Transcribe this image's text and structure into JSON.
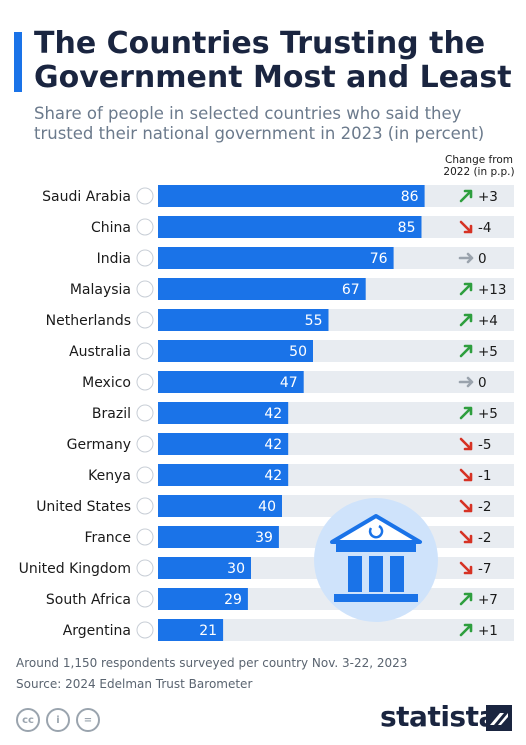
{
  "header": {
    "title": "The Countries Trusting the Government Most and Least",
    "subtitle": "Share of people in selected countries who said they trusted their national government in 2023 (in percent)",
    "change_label_line1": "Change from",
    "change_label_line2": "2022 (in p.p.)"
  },
  "colors": {
    "bar": "#1a73e8",
    "track": "#e8ecf1",
    "up": "#2e9e3e",
    "down": "#d63224",
    "neutral": "#9aa3ad",
    "accent": "#1a73e8"
  },
  "chart_data": {
    "type": "bar",
    "orientation": "horizontal",
    "categories": [
      "Saudi Arabia",
      "China",
      "India",
      "Malaysia",
      "Netherlands",
      "Australia",
      "Mexico",
      "Brazil",
      "Germany",
      "Kenya",
      "United States",
      "France",
      "United Kingdom",
      "South Africa",
      "Argentina"
    ],
    "values": [
      86,
      85,
      76,
      67,
      55,
      50,
      47,
      42,
      42,
      42,
      40,
      39,
      30,
      29,
      21
    ],
    "value_labels": [
      "86",
      "85",
      "76",
      "67",
      "55",
      "50",
      "47",
      "42",
      "42",
      "42",
      "40",
      "39",
      "30",
      "29",
      "21"
    ],
    "change": [
      3,
      -4,
      0,
      13,
      4,
      5,
      0,
      5,
      -5,
      -1,
      -2,
      -2,
      -7,
      7,
      1
    ],
    "change_labels": [
      "+3",
      "-4",
      "0",
      "+13",
      "+4",
      "+5",
      "0",
      "+5",
      "-5",
      "-1",
      "-2",
      "-2",
      "-7",
      "+7",
      "+1"
    ],
    "xlim": [
      0,
      100
    ],
    "grid": false,
    "legend": "none"
  },
  "footer": {
    "note": "Around 1,150 respondents surveyed per country Nov. 3-22, 2023",
    "source": "Source: 2024 Edelman Trust Barometer",
    "cc_icons": [
      "cc-icon",
      "by-icon",
      "nd-icon"
    ],
    "cc_labels": [
      "cc",
      "i",
      "="
    ],
    "brand": "statista"
  }
}
